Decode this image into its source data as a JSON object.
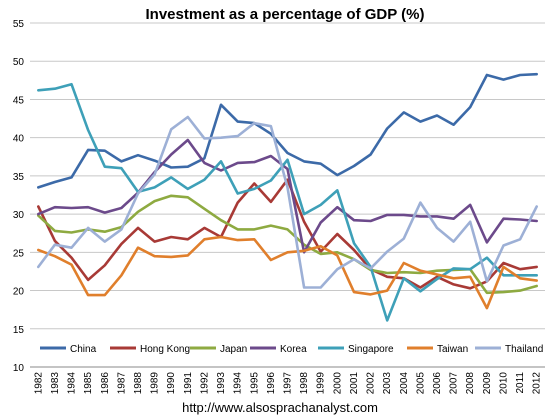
{
  "chart_data": {
    "type": "line",
    "title": "Investment as a percentage of GDP (%)",
    "xlabel": "",
    "ylabel": "",
    "ylim": [
      10,
      55
    ],
    "yticks": [
      10,
      15,
      20,
      25,
      30,
      35,
      40,
      45,
      50,
      55
    ],
    "grid": "horizontal",
    "legend_position": "bottom-inside",
    "categories": [
      "1982",
      "1983",
      "1984",
      "1985",
      "1986",
      "1987",
      "1988",
      "1989",
      "1990",
      "1991",
      "1992",
      "1993",
      "1994",
      "1995",
      "1996",
      "1997",
      "1998",
      "1999",
      "2000",
      "2001",
      "2002",
      "2003",
      "2004",
      "2005",
      "2006",
      "2007",
      "2008",
      "2009",
      "2010",
      "2011",
      "2012"
    ],
    "series": [
      {
        "name": "China",
        "color": "#3c6aa8",
        "values": [
          33.5,
          34.2,
          34.8,
          38.4,
          38.3,
          36.9,
          37.7,
          37.0,
          36.1,
          36.2,
          37.3,
          44.3,
          42.1,
          41.9,
          40.5,
          38.0,
          36.9,
          36.6,
          35.1,
          36.3,
          37.8,
          41.2,
          43.3,
          42.1,
          42.9,
          41.7,
          44.0,
          48.2,
          47.6,
          48.2,
          48.3
        ]
      },
      {
        "name": "Hong Kong",
        "color": "#a83a36",
        "values": [
          31.0,
          26.5,
          24.3,
          21.4,
          23.3,
          26.1,
          28.2,
          26.4,
          27.0,
          26.7,
          28.2,
          27.0,
          31.5,
          34.0,
          31.6,
          34.5,
          29.0,
          25.1,
          27.4,
          25.3,
          22.8,
          21.8,
          21.6,
          20.4,
          21.8,
          20.8,
          20.3,
          21.2,
          23.6,
          22.8,
          23.1
        ]
      },
      {
        "name": "Japan",
        "color": "#8eaa41",
        "values": [
          29.8,
          27.8,
          27.6,
          28.0,
          27.7,
          28.3,
          30.3,
          31.7,
          32.4,
          32.2,
          30.7,
          29.2,
          28.0,
          28.0,
          28.5,
          28.0,
          26.0,
          24.8,
          25.0,
          24.1,
          22.7,
          22.3,
          22.4,
          22.3,
          22.6,
          22.7,
          22.8,
          19.7,
          19.8,
          20.0,
          20.6
        ]
      },
      {
        "name": "Korea",
        "color": "#6c4a8b",
        "values": [
          30.0,
          30.9,
          30.8,
          30.9,
          30.2,
          30.8,
          32.8,
          35.5,
          37.8,
          39.7,
          36.7,
          35.7,
          36.7,
          36.8,
          37.6,
          35.9,
          25.0,
          28.9,
          30.9,
          29.2,
          29.1,
          29.9,
          29.9,
          29.7,
          29.7,
          29.4,
          31.2,
          26.3,
          29.4,
          29.3,
          29.1
        ]
      },
      {
        "name": "Singapore",
        "color": "#3ea0b8",
        "values": [
          46.2,
          46.4,
          47.0,
          41.0,
          36.2,
          36.0,
          32.9,
          33.5,
          34.8,
          33.3,
          34.5,
          36.9,
          32.7,
          33.3,
          34.4,
          37.1,
          30.0,
          31.2,
          33.1,
          26.2,
          23.1,
          16.1,
          21.6,
          19.9,
          21.5,
          22.9,
          22.8,
          24.3,
          22.0,
          22.0,
          22.0
        ]
      },
      {
        "name": "Taiwan",
        "color": "#e07f2c",
        "values": [
          25.3,
          24.5,
          23.4,
          19.4,
          19.4,
          22.0,
          25.6,
          24.5,
          24.4,
          24.6,
          26.7,
          27.0,
          26.6,
          26.7,
          24.0,
          25.0,
          25.2,
          25.8,
          24.6,
          19.8,
          19.5,
          20.0,
          23.6,
          22.6,
          22.1,
          21.6,
          21.8,
          17.7,
          23.1,
          21.6,
          21.3
        ]
      },
      {
        "name": "Thailand",
        "color": "#9db0d6",
        "values": [
          23.1,
          26.0,
          25.6,
          28.2,
          26.4,
          28.0,
          32.7,
          35.2,
          41.1,
          42.7,
          39.9,
          40.0,
          40.2,
          41.9,
          41.5,
          33.5,
          20.4,
          20.4,
          22.8,
          24.1,
          22.9,
          25.1,
          26.8,
          31.5,
          28.2,
          26.4,
          29.0,
          21.2,
          25.9,
          26.7,
          31.0
        ]
      }
    ]
  },
  "footer": {
    "url": "http://www.alsosprachanalyst.com"
  }
}
